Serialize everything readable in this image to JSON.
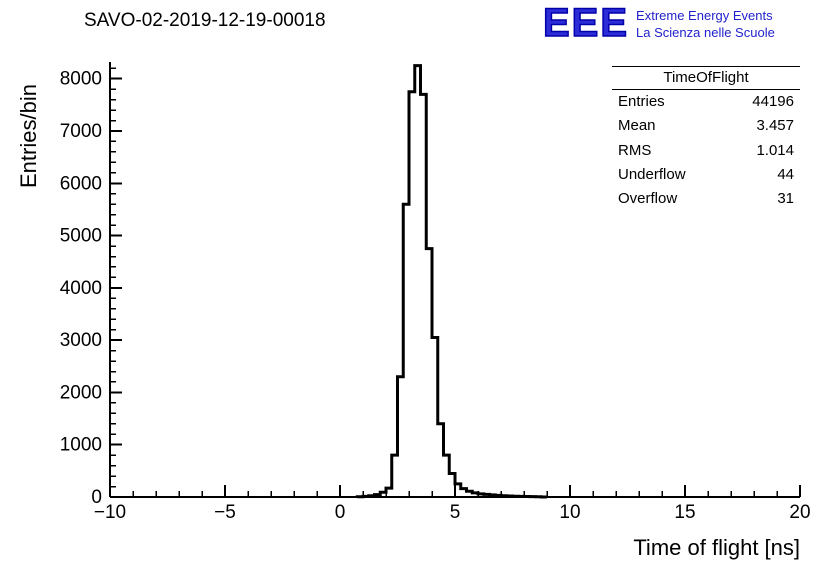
{
  "logo": {
    "acronym": "EEE",
    "line1": "Extreme Energy Events",
    "line2": "La Scienza nelle Scuole",
    "color": "#2222cc"
  },
  "chart_data": {
    "type": "bar",
    "subtype": "step-histogram",
    "title": "SAVO-02-2019-12-19-00018",
    "xlabel": "Time of flight [ns]",
    "ylabel": "Entries/bin",
    "xlim": [
      -10,
      20
    ],
    "ylim": [
      0,
      8320
    ],
    "grid": false,
    "line_color": "#000000",
    "bins": {
      "start": 0.75,
      "width": 0.25,
      "counts": [
        5,
        12,
        25,
        45,
        90,
        170,
        800,
        2300,
        5600,
        7750,
        8250,
        7700,
        4750,
        3050,
        1400,
        800,
        450,
        250,
        160,
        110,
        80,
        60,
        50,
        40,
        30,
        25,
        20,
        15,
        12,
        10,
        8,
        5,
        0
      ]
    },
    "x_ticks": {
      "major": [
        -10,
        -5,
        0,
        5,
        10,
        15,
        20
      ],
      "labels": [
        "−10",
        "−5",
        "0",
        "5",
        "10",
        "15",
        "20"
      ],
      "minor_step": 1
    },
    "y_ticks": {
      "major": [
        0,
        1000,
        2000,
        3000,
        4000,
        5000,
        6000,
        7000,
        8000
      ],
      "labels": [
        "0",
        "1000",
        "2000",
        "3000",
        "4000",
        "5000",
        "6000",
        "7000",
        "8000"
      ],
      "minor_step": 200
    },
    "stats": {
      "title": "TimeOfFlight",
      "rows": [
        {
          "label": "Entries",
          "value": "44196"
        },
        {
          "label": "Mean",
          "value": "3.457"
        },
        {
          "label": "RMS",
          "value": "1.014"
        },
        {
          "label": "Underflow",
          "value": "44"
        },
        {
          "label": "Overflow",
          "value": "31"
        }
      ]
    }
  }
}
